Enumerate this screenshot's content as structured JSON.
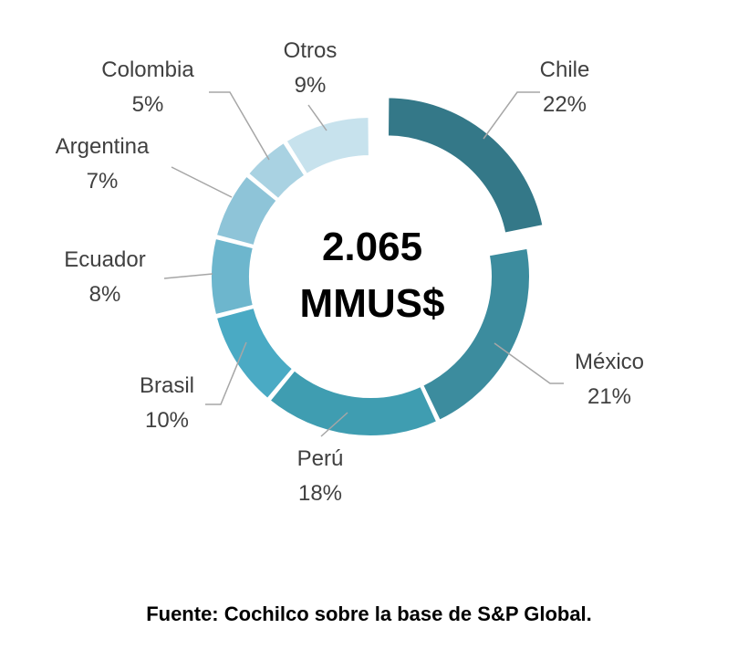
{
  "chart_data": {
    "type": "pie",
    "variant": "donut",
    "center_label": [
      "2.065",
      "MMUS$"
    ],
    "slices": [
      {
        "label": "Chile",
        "value": 22,
        "value_label": "22%",
        "color": "#347888",
        "exploded": true
      },
      {
        "label": "México",
        "value": 21,
        "value_label": "21%",
        "color": "#3c8c9e"
      },
      {
        "label": "Perú",
        "value": 18,
        "value_label": "18%",
        "color": "#3f9db1"
      },
      {
        "label": "Brasil",
        "value": 10,
        "value_label": "10%",
        "color": "#4aaac4"
      },
      {
        "label": "Ecuador",
        "value": 8,
        "value_label": "8%",
        "color": "#6db6cd"
      },
      {
        "label": "Argentina",
        "value": 7,
        "value_label": "7%",
        "color": "#8ec4d8"
      },
      {
        "label": "Colombia",
        "value": 5,
        "value_label": "5%",
        "color": "#a9d2e2"
      },
      {
        "label": "Otros",
        "value": 9,
        "value_label": "9%",
        "color": "#c7e2ed"
      }
    ]
  },
  "source_note": "Fuente: Cochilco sobre la base de S&P Global."
}
